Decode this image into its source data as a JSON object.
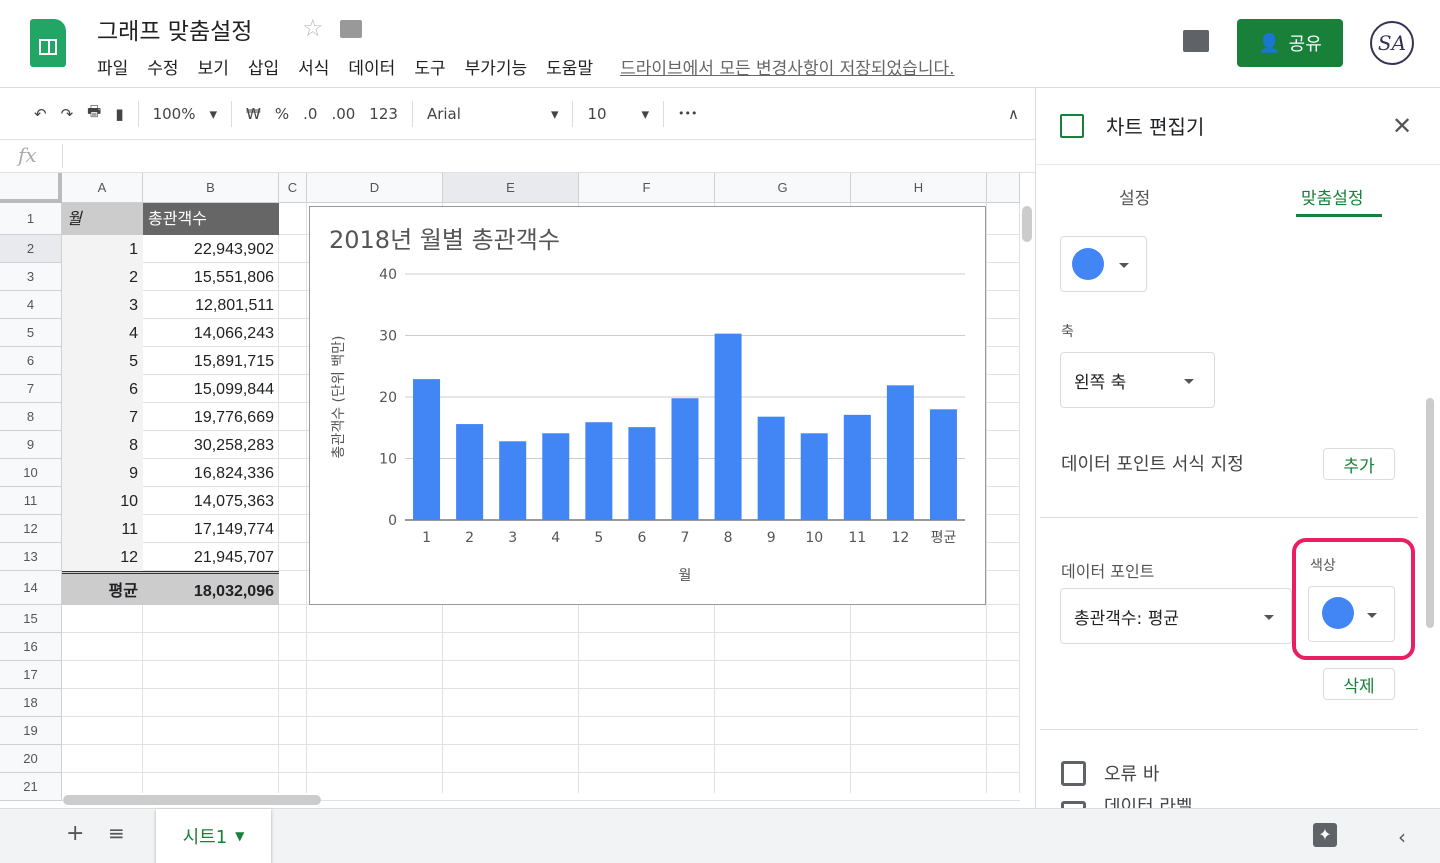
{
  "app": {
    "title": "그래프 맞춤설정",
    "menus": [
      "파일",
      "수정",
      "보기",
      "삽입",
      "서식",
      "데이터",
      "도구",
      "부가기능",
      "도움말"
    ],
    "save_status": "드라이브에서 모든 변경사항이 저장되었습니다.",
    "share_label": "공유",
    "brand_color": "#188038"
  },
  "toolbar": {
    "zoom": "100%",
    "currency": "₩",
    "percent": "%",
    "dec_less": ".0",
    "dec_more": ".00",
    "format": "123",
    "font": "Arial",
    "font_size": "10",
    "more": "•••"
  },
  "formula_bar": {
    "fx": "fx",
    "value": ""
  },
  "grid": {
    "columns": [
      "A",
      "B",
      "C",
      "D",
      "E",
      "F",
      "G",
      "H"
    ],
    "row_numbers": [
      "1",
      "2",
      "3",
      "4",
      "5",
      "6",
      "7",
      "8",
      "9",
      "10",
      "11",
      "12",
      "13",
      "14",
      "15",
      "16",
      "17",
      "18",
      "19",
      "20",
      "21"
    ],
    "header": [
      "월",
      "총관객수"
    ],
    "rows": [
      [
        "1",
        "22,943,902"
      ],
      [
        "2",
        "15,551,806"
      ],
      [
        "3",
        "12,801,511"
      ],
      [
        "4",
        "14,066,243"
      ],
      [
        "5",
        "15,891,715"
      ],
      [
        "6",
        "15,099,844"
      ],
      [
        "7",
        "19,776,669"
      ],
      [
        "8",
        "30,258,283"
      ],
      [
        "9",
        "16,824,336"
      ],
      [
        "10",
        "14,075,363"
      ],
      [
        "11",
        "17,149,774"
      ],
      [
        "12",
        "21,945,707"
      ]
    ],
    "avg": [
      "평균",
      "18,032,096"
    ]
  },
  "chart_data": {
    "type": "bar",
    "title": "2018년 월별 총관객수",
    "xlabel": "월",
    "ylabel": "총관객수 (단위 백만)",
    "categories": [
      "1",
      "2",
      "3",
      "4",
      "5",
      "6",
      "7",
      "8",
      "9",
      "10",
      "11",
      "12",
      "평균"
    ],
    "values": [
      22.9,
      15.6,
      12.8,
      14.1,
      15.9,
      15.1,
      19.8,
      30.3,
      16.8,
      14.1,
      17.1,
      21.9,
      18.0
    ],
    "ylim": [
      0,
      40
    ],
    "yticks": [
      "0",
      "10",
      "20",
      "30",
      "40"
    ],
    "grid": true,
    "color": "#4285f4"
  },
  "panel": {
    "title": "차트 편집기",
    "tabs": [
      "설정",
      "맞춤설정"
    ],
    "active_tab": "맞춤설정",
    "axis_label": "축",
    "axis_value": "왼쪽 축",
    "format_points_label": "데이터 포인트 서식 지정",
    "add_label": "추가",
    "data_point_label": "데이터 포인트",
    "data_point_value": "총관객수: 평균",
    "color_label": "색상",
    "delete_label": "삭제",
    "error_bar_label": "오류 바",
    "data_label_label": "데이터 라벨",
    "highlight_color": "#e91e63",
    "series_color": "#4285f4"
  },
  "sheets": {
    "tabs": [
      "시트1"
    ]
  }
}
